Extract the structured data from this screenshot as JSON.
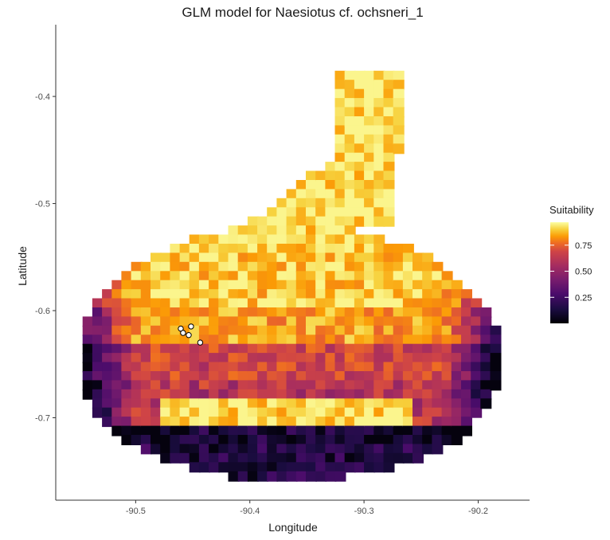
{
  "chart_data": {
    "type": "heatmap",
    "title": "GLM model for Naesiotus cf. ochsneri_1",
    "xlabel": "Longitude",
    "ylabel": "Latitude",
    "xlim": [
      -90.57,
      -90.155
    ],
    "ylim": [
      -0.777,
      -0.333
    ],
    "x_ticks": [
      -90.5,
      -90.4,
      -90.3,
      -90.2
    ],
    "x_tick_labels": [
      "-90.5",
      "-90.4",
      "-90.3",
      "-90.2"
    ],
    "y_ticks": [
      -0.4,
      -0.5,
      -0.6,
      -0.7
    ],
    "y_tick_labels": [
      "-0.4",
      "-0.5",
      "-0.6",
      "-0.7"
    ],
    "legend": {
      "title": "Suitability",
      "ticks": [
        0.25,
        0.5,
        0.75
      ],
      "tick_labels": [
        "0.25",
        "0.50",
        "0.75"
      ],
      "range": [
        0.0,
        0.97
      ],
      "position": "right"
    },
    "colormap": "inferno",
    "grid": false,
    "raster": {
      "cell_size": 0.0085,
      "description": "suitability raster over the island; high (pale yellow) in the north, orange band near -0.6, purple/black in the south and on the western and eastern flanks"
    },
    "occurrence_points": [
      {
        "lon": -90.4605,
        "lat": -0.6168
      },
      {
        "lon": -90.4515,
        "lat": -0.6148
      },
      {
        "lon": -90.4585,
        "lat": -0.6208
      },
      {
        "lon": -90.4535,
        "lat": -0.6228
      },
      {
        "lon": -90.4435,
        "lat": -0.6298
      }
    ],
    "colors": {
      "low": "#000004",
      "mid_low": "#56106e",
      "mid": "#bb3754",
      "mid_high": "#f98e09",
      "high": "#fcffa4",
      "point_fill": "#ffffff",
      "point_stroke": "#000000"
    }
  }
}
